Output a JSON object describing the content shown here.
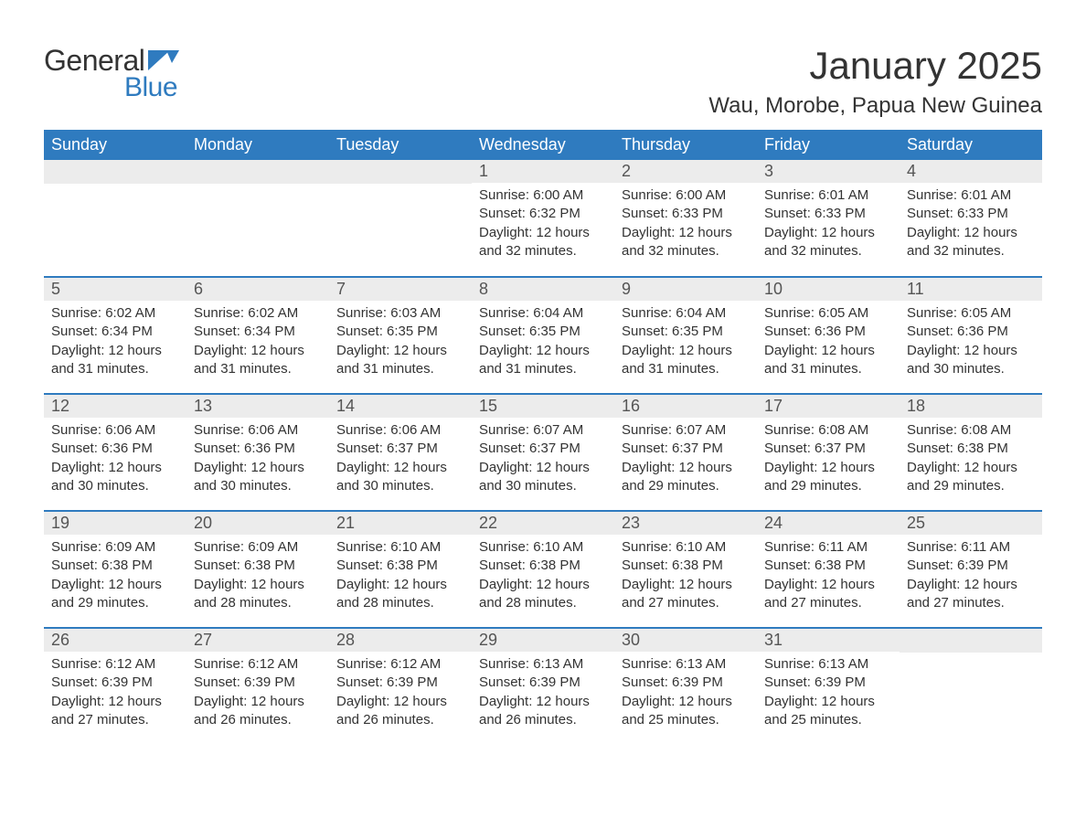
{
  "logo": {
    "general": "General",
    "blue": "Blue",
    "flag_color": "#2f7bbf"
  },
  "title": "January 2025",
  "location": "Wau, Morobe, Papua New Guinea",
  "colors": {
    "header_bg": "#2f7bbf",
    "header_text": "#ffffff",
    "daynum_bg": "#ececec",
    "daynum_text": "#555555",
    "row_divider": "#2f7bbf",
    "body_text": "#333333",
    "background": "#ffffff"
  },
  "typography": {
    "title_fontsize": 42,
    "location_fontsize": 24,
    "weekday_fontsize": 18,
    "daynum_fontsize": 18,
    "cell_fontsize": 15
  },
  "weekdays": [
    "Sunday",
    "Monday",
    "Tuesday",
    "Wednesday",
    "Thursday",
    "Friday",
    "Saturday"
  ],
  "weeks": [
    [
      null,
      null,
      null,
      {
        "n": "1",
        "sr": "Sunrise: 6:00 AM",
        "ss": "Sunset: 6:32 PM",
        "d1": "Daylight: 12 hours",
        "d2": "and 32 minutes."
      },
      {
        "n": "2",
        "sr": "Sunrise: 6:00 AM",
        "ss": "Sunset: 6:33 PM",
        "d1": "Daylight: 12 hours",
        "d2": "and 32 minutes."
      },
      {
        "n": "3",
        "sr": "Sunrise: 6:01 AM",
        "ss": "Sunset: 6:33 PM",
        "d1": "Daylight: 12 hours",
        "d2": "and 32 minutes."
      },
      {
        "n": "4",
        "sr": "Sunrise: 6:01 AM",
        "ss": "Sunset: 6:33 PM",
        "d1": "Daylight: 12 hours",
        "d2": "and 32 minutes."
      }
    ],
    [
      {
        "n": "5",
        "sr": "Sunrise: 6:02 AM",
        "ss": "Sunset: 6:34 PM",
        "d1": "Daylight: 12 hours",
        "d2": "and 31 minutes."
      },
      {
        "n": "6",
        "sr": "Sunrise: 6:02 AM",
        "ss": "Sunset: 6:34 PM",
        "d1": "Daylight: 12 hours",
        "d2": "and 31 minutes."
      },
      {
        "n": "7",
        "sr": "Sunrise: 6:03 AM",
        "ss": "Sunset: 6:35 PM",
        "d1": "Daylight: 12 hours",
        "d2": "and 31 minutes."
      },
      {
        "n": "8",
        "sr": "Sunrise: 6:04 AM",
        "ss": "Sunset: 6:35 PM",
        "d1": "Daylight: 12 hours",
        "d2": "and 31 minutes."
      },
      {
        "n": "9",
        "sr": "Sunrise: 6:04 AM",
        "ss": "Sunset: 6:35 PM",
        "d1": "Daylight: 12 hours",
        "d2": "and 31 minutes."
      },
      {
        "n": "10",
        "sr": "Sunrise: 6:05 AM",
        "ss": "Sunset: 6:36 PM",
        "d1": "Daylight: 12 hours",
        "d2": "and 31 minutes."
      },
      {
        "n": "11",
        "sr": "Sunrise: 6:05 AM",
        "ss": "Sunset: 6:36 PM",
        "d1": "Daylight: 12 hours",
        "d2": "and 30 minutes."
      }
    ],
    [
      {
        "n": "12",
        "sr": "Sunrise: 6:06 AM",
        "ss": "Sunset: 6:36 PM",
        "d1": "Daylight: 12 hours",
        "d2": "and 30 minutes."
      },
      {
        "n": "13",
        "sr": "Sunrise: 6:06 AM",
        "ss": "Sunset: 6:36 PM",
        "d1": "Daylight: 12 hours",
        "d2": "and 30 minutes."
      },
      {
        "n": "14",
        "sr": "Sunrise: 6:06 AM",
        "ss": "Sunset: 6:37 PM",
        "d1": "Daylight: 12 hours",
        "d2": "and 30 minutes."
      },
      {
        "n": "15",
        "sr": "Sunrise: 6:07 AM",
        "ss": "Sunset: 6:37 PM",
        "d1": "Daylight: 12 hours",
        "d2": "and 30 minutes."
      },
      {
        "n": "16",
        "sr": "Sunrise: 6:07 AM",
        "ss": "Sunset: 6:37 PM",
        "d1": "Daylight: 12 hours",
        "d2": "and 29 minutes."
      },
      {
        "n": "17",
        "sr": "Sunrise: 6:08 AM",
        "ss": "Sunset: 6:37 PM",
        "d1": "Daylight: 12 hours",
        "d2": "and 29 minutes."
      },
      {
        "n": "18",
        "sr": "Sunrise: 6:08 AM",
        "ss": "Sunset: 6:38 PM",
        "d1": "Daylight: 12 hours",
        "d2": "and 29 minutes."
      }
    ],
    [
      {
        "n": "19",
        "sr": "Sunrise: 6:09 AM",
        "ss": "Sunset: 6:38 PM",
        "d1": "Daylight: 12 hours",
        "d2": "and 29 minutes."
      },
      {
        "n": "20",
        "sr": "Sunrise: 6:09 AM",
        "ss": "Sunset: 6:38 PM",
        "d1": "Daylight: 12 hours",
        "d2": "and 28 minutes."
      },
      {
        "n": "21",
        "sr": "Sunrise: 6:10 AM",
        "ss": "Sunset: 6:38 PM",
        "d1": "Daylight: 12 hours",
        "d2": "and 28 minutes."
      },
      {
        "n": "22",
        "sr": "Sunrise: 6:10 AM",
        "ss": "Sunset: 6:38 PM",
        "d1": "Daylight: 12 hours",
        "d2": "and 28 minutes."
      },
      {
        "n": "23",
        "sr": "Sunrise: 6:10 AM",
        "ss": "Sunset: 6:38 PM",
        "d1": "Daylight: 12 hours",
        "d2": "and 27 minutes."
      },
      {
        "n": "24",
        "sr": "Sunrise: 6:11 AM",
        "ss": "Sunset: 6:38 PM",
        "d1": "Daylight: 12 hours",
        "d2": "and 27 minutes."
      },
      {
        "n": "25",
        "sr": "Sunrise: 6:11 AM",
        "ss": "Sunset: 6:39 PM",
        "d1": "Daylight: 12 hours",
        "d2": "and 27 minutes."
      }
    ],
    [
      {
        "n": "26",
        "sr": "Sunrise: 6:12 AM",
        "ss": "Sunset: 6:39 PM",
        "d1": "Daylight: 12 hours",
        "d2": "and 27 minutes."
      },
      {
        "n": "27",
        "sr": "Sunrise: 6:12 AM",
        "ss": "Sunset: 6:39 PM",
        "d1": "Daylight: 12 hours",
        "d2": "and 26 minutes."
      },
      {
        "n": "28",
        "sr": "Sunrise: 6:12 AM",
        "ss": "Sunset: 6:39 PM",
        "d1": "Daylight: 12 hours",
        "d2": "and 26 minutes."
      },
      {
        "n": "29",
        "sr": "Sunrise: 6:13 AM",
        "ss": "Sunset: 6:39 PM",
        "d1": "Daylight: 12 hours",
        "d2": "and 26 minutes."
      },
      {
        "n": "30",
        "sr": "Sunrise: 6:13 AM",
        "ss": "Sunset: 6:39 PM",
        "d1": "Daylight: 12 hours",
        "d2": "and 25 minutes."
      },
      {
        "n": "31",
        "sr": "Sunrise: 6:13 AM",
        "ss": "Sunset: 6:39 PM",
        "d1": "Daylight: 12 hours",
        "d2": "and 25 minutes."
      },
      null
    ]
  ]
}
